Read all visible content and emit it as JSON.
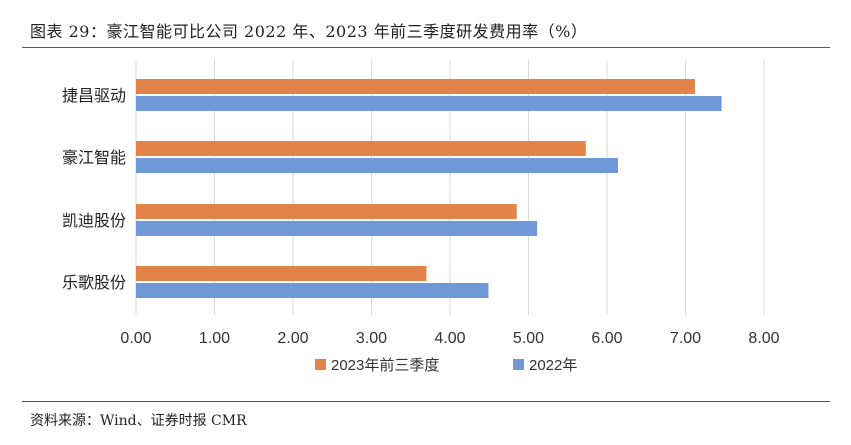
{
  "header": {
    "title": "图表 29：豪江智能可比公司 2022 年、2023 年前三季度研发费用率（%）"
  },
  "footer": {
    "source": "资料来源：Wind、证券时报 CMR"
  },
  "chart_data": {
    "type": "bar",
    "orientation": "horizontal",
    "categories": [
      "捷昌驱动",
      "豪江智能",
      "凯迪股份",
      "乐歌股份"
    ],
    "series": [
      {
        "name": "2023年前三季度",
        "color": "#E2834A",
        "values": [
          7.12,
          5.73,
          4.85,
          3.7
        ]
      },
      {
        "name": "2022年",
        "color": "#6E98D6",
        "values": [
          7.46,
          6.14,
          5.11,
          4.49
        ]
      }
    ],
    "xlim": [
      0,
      8
    ],
    "xticks": [
      "0.00",
      "1.00",
      "2.00",
      "3.00",
      "4.00",
      "5.00",
      "6.00",
      "7.00",
      "8.00"
    ],
    "grid": true,
    "legend": "bottom-center"
  }
}
